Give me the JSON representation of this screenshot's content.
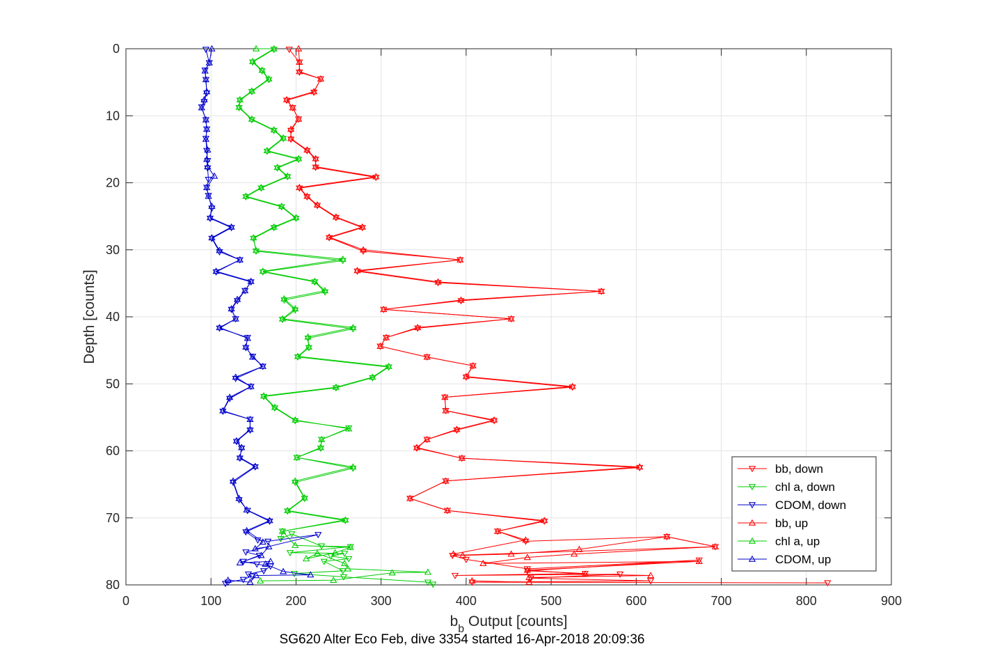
{
  "chart_data": {
    "type": "line",
    "title": "SG620 Alter Eco Feb, dive 3354 started 16-Apr-2018 20:09:36",
    "xlabel_main": "b",
    "xlabel_sub": "b",
    "xlabel_rest": " Output [counts]",
    "ylabel": "Depth [counts]",
    "xlim": [
      0,
      900
    ],
    "ylim": [
      0,
      80
    ],
    "y_reversed": true,
    "grid": true,
    "legend_position": "bottom-right",
    "xticks": [
      "0",
      "100",
      "200",
      "300",
      "400",
      "500",
      "600",
      "700",
      "800",
      "900"
    ],
    "yticks": [
      "0",
      "10",
      "20",
      "30",
      "40",
      "50",
      "60",
      "70",
      "80"
    ],
    "series": [
      {
        "name": "bb, down",
        "color": "#ff0000",
        "marker": "down",
        "x": [
          192,
          204,
          204,
          229,
          221,
          189,
          196,
          203,
          194,
          194,
          213,
          223,
          223,
          294,
          204,
          213,
          225,
          247,
          278,
          239,
          279,
          393,
          272,
          367,
          559,
          394,
          303,
          453,
          343,
          306,
          299,
          354,
          408,
          400,
          525,
          375,
          376,
          433,
          389,
          354,
          342,
          395,
          604,
          376,
          334,
          378,
          492,
          437,
          470,
          636,
          693,
          384,
          400,
          472,
          674,
          472,
          540,
          387,
          581,
          476,
          617,
          407,
          825
        ],
        "y": [
          0.1,
          2,
          3.5,
          4.5,
          6.5,
          7.7,
          8.8,
          10.5,
          12.2,
          13.5,
          15.2,
          16.5,
          17.7,
          19.2,
          20.8,
          22.1,
          23.4,
          25.2,
          26.7,
          28.2,
          30.2,
          31.5,
          33.2,
          34.9,
          36.2,
          37.6,
          38.9,
          40.3,
          41.7,
          43.1,
          44.4,
          46,
          47.3,
          49,
          50.5,
          52,
          54,
          55.5,
          56.9,
          58.3,
          59.6,
          61.1,
          62.5,
          64.5,
          67.1,
          68.9,
          70.5,
          72,
          73.5,
          72.8,
          74.3,
          75.6,
          76.2,
          77.6,
          76.3,
          77.9,
          78.3,
          78.6,
          78.4,
          79,
          79.4,
          79.6,
          79.7
        ]
      },
      {
        "name": "chl a, down",
        "color": "#00cc00",
        "marker": "down",
        "x": [
          174,
          149,
          160,
          168,
          148,
          134,
          133,
          148,
          174,
          185,
          166,
          203,
          178,
          190,
          159,
          141,
          183,
          200,
          174,
          150,
          153,
          255,
          161,
          222,
          234,
          186,
          199,
          184,
          267,
          214,
          215,
          202,
          309,
          290,
          247,
          162,
          175,
          199,
          262,
          230,
          229,
          201,
          267,
          199,
          210,
          190,
          258,
          184,
          182,
          195,
          230,
          264,
          193,
          257,
          241,
          262,
          233,
          255,
          198,
          256,
          355,
          361
        ],
        "y": [
          0.1,
          2,
          3.3,
          4.6,
          6.4,
          7.7,
          8.8,
          10.6,
          12.2,
          13.4,
          15.3,
          16.5,
          17.8,
          19.1,
          20.8,
          22.1,
          23.6,
          25.3,
          26.7,
          28.3,
          30.2,
          31.6,
          33.3,
          34.8,
          36.3,
          37.5,
          39,
          40.4,
          41.8,
          43.2,
          44.6,
          46,
          47.5,
          49.1,
          50.6,
          51.9,
          53.6,
          55.5,
          56.6,
          58.3,
          59.6,
          61,
          62.6,
          64.7,
          67.1,
          69,
          70.4,
          72,
          73.1,
          72.4,
          74.2,
          74.3,
          75.2,
          75.3,
          75.7,
          76.1,
          76.5,
          77.9,
          78.3,
          78.8,
          79.6,
          79.9
        ]
      },
      {
        "name": "CDOM, down",
        "color": "#0000cc",
        "marker": "down",
        "x": [
          94,
          98,
          93,
          94,
          95,
          92,
          89,
          94,
          95,
          94,
          95,
          96,
          96,
          97,
          95,
          97,
          101,
          99,
          124,
          101,
          110,
          134,
          106,
          147,
          140,
          131,
          124,
          129,
          110,
          143,
          141,
          149,
          161,
          129,
          147,
          122,
          114,
          146,
          146,
          130,
          136,
          134,
          152,
          126,
          133,
          143,
          169,
          141,
          155,
          167,
          226,
          141,
          157,
          138,
          154,
          170,
          162,
          144,
          148,
          138,
          120,
          117
        ],
        "y": [
          0.1,
          2.1,
          3.2,
          4.6,
          6.6,
          7.9,
          8.7,
          10.6,
          12,
          13.4,
          15.2,
          16.7,
          17.8,
          19.5,
          20.7,
          21.9,
          23.8,
          25.3,
          26.7,
          28.3,
          30.3,
          31.5,
          33.3,
          34.8,
          36.1,
          37.6,
          38.9,
          40.3,
          41.7,
          43.1,
          44.6,
          45.9,
          47.4,
          49.2,
          50.4,
          52.2,
          54.1,
          55.3,
          56.9,
          58.6,
          59.6,
          61.1,
          62.4,
          64.7,
          67.3,
          68.9,
          70.5,
          72.1,
          73.3,
          73.5,
          72.5,
          75.1,
          75.6,
          76.5,
          76.9,
          77.2,
          77.9,
          78.4,
          78.7,
          79.2,
          79.6,
          79.8
        ]
      },
      {
        "name": "bb, up",
        "color": "#ff0000",
        "marker": "up",
        "x": [
          407,
          474,
          474,
          617,
          540,
          472,
          674,
          420,
          472,
          527,
          693,
          636,
          533,
          453,
          396,
          385,
          470,
          437,
          492,
          378,
          334,
          376,
          604,
          395,
          342,
          354,
          389,
          433,
          376,
          375,
          525,
          400,
          408,
          354,
          299,
          306,
          343,
          453,
          303,
          394,
          559,
          367,
          272,
          393,
          279,
          239,
          278,
          247,
          225,
          213,
          204,
          294,
          223,
          223,
          213,
          194,
          194,
          203,
          196,
          189,
          221,
          229,
          204,
          204,
          203
        ],
        "y": [
          79.4,
          79.6,
          78.9,
          78.6,
          78.4,
          77.8,
          76.5,
          76.8,
          75.9,
          75.4,
          74.3,
          72.8,
          74.7,
          75.4,
          75.6,
          75.4,
          73.3,
          72,
          70.4,
          68.9,
          67.1,
          64.5,
          62.4,
          61.1,
          59.5,
          58.3,
          56.8,
          55.4,
          54,
          52,
          50.4,
          48.9,
          47.3,
          46,
          44.4,
          43.1,
          41.6,
          40.3,
          38.9,
          37.5,
          36.2,
          34.8,
          33.1,
          31.5,
          30,
          28.1,
          26.6,
          25.1,
          23.3,
          22,
          20.7,
          19.1,
          17.6,
          16.4,
          15.1,
          13.4,
          12,
          10.5,
          8.8,
          7.6,
          6.4,
          4.5,
          3.4,
          2,
          0
        ]
      },
      {
        "name": "chl a, up",
        "color": "#00cc00",
        "marker": "up",
        "x": [
          158,
          244,
          313,
          355,
          261,
          257,
          225,
          212,
          246,
          264,
          199,
          184,
          258,
          190,
          210,
          199,
          267,
          201,
          229,
          230,
          262,
          199,
          175,
          162,
          247,
          290,
          309,
          202,
          215,
          214,
          267,
          184,
          199,
          186,
          234,
          222,
          161,
          255,
          153,
          150,
          174,
          200,
          183,
          141,
          159,
          190,
          178,
          203,
          166,
          185,
          174,
          148,
          133,
          134,
          148,
          168,
          160,
          149,
          174,
          153
        ],
        "y": [
          79.4,
          79.3,
          78.2,
          78.1,
          77.6,
          76.8,
          75.3,
          76.1,
          75.2,
          74.4,
          74.1,
          72,
          70.3,
          68.9,
          67,
          64.5,
          62.4,
          61,
          59.5,
          58.3,
          56.7,
          55.4,
          53.5,
          51.8,
          50.5,
          49,
          47.4,
          45.9,
          44.5,
          43,
          41.6,
          40.3,
          38.8,
          37.3,
          36.1,
          34.7,
          33.2,
          31.4,
          30.1,
          28.2,
          26.6,
          25.2,
          23.5,
          22,
          20.7,
          19,
          17.7,
          16.4,
          15.2,
          13.3,
          12.1,
          10.5,
          8.7,
          7.6,
          6.3,
          4.5,
          3.2,
          1.9,
          0,
          0
        ]
      },
      {
        "name": "CDOM, up",
        "color": "#0000cc",
        "marker": "up",
        "x": [
          120,
          146,
          153,
          217,
          185,
          164,
          170,
          134,
          159,
          168,
          152,
          161,
          142,
          169,
          142,
          133,
          126,
          152,
          134,
          136,
          130,
          146,
          146,
          114,
          122,
          147,
          129,
          161,
          149,
          141,
          143,
          110,
          129,
          124,
          131,
          140,
          147,
          106,
          134,
          110,
          101,
          124,
          99,
          101,
          97,
          95,
          104,
          96,
          95,
          96,
          94,
          95,
          94,
          89,
          92,
          95,
          94,
          93,
          98,
          101
        ],
        "y": [
          79.3,
          79.6,
          78.6,
          78.5,
          78,
          76.9,
          76.5,
          76.7,
          75.6,
          74.3,
          74.6,
          73.6,
          71.9,
          70.4,
          68.8,
          67.1,
          64.5,
          62.3,
          61,
          59.5,
          58.5,
          56.8,
          55.3,
          54,
          52,
          50.4,
          49,
          47.4,
          46,
          44.5,
          43.2,
          41.6,
          40.3,
          38.8,
          37.4,
          36.1,
          34.7,
          33.2,
          31.5,
          30.1,
          28.2,
          26.6,
          25.2,
          23.5,
          22,
          20.7,
          19,
          17.6,
          16.5,
          15.1,
          13.5,
          12,
          10.6,
          8.8,
          7.6,
          6.4,
          4.6,
          3.3,
          2.1,
          0
        ]
      }
    ]
  }
}
